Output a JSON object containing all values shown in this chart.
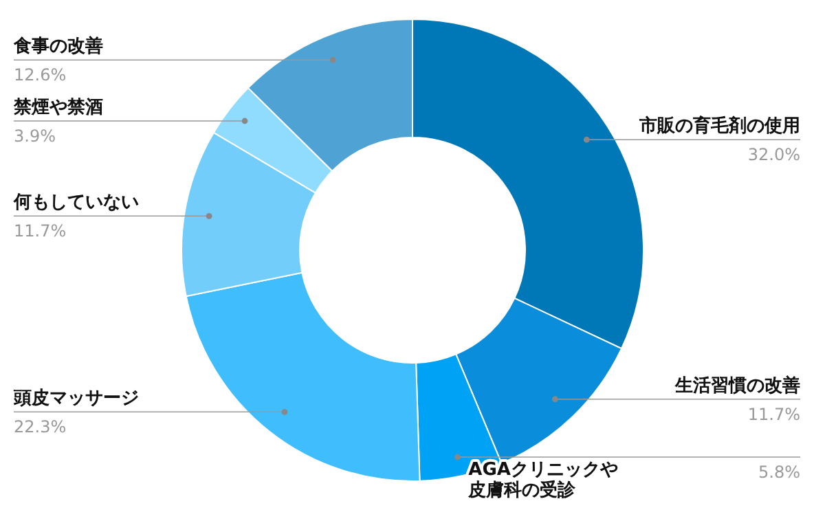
{
  "chart_data": {
    "type": "donut",
    "categories": [
      "市販の育毛剤の使用",
      "生活習慣の改善",
      "AGAクリニックや皮膚科の受診",
      "頭皮マッサージ",
      "何もしていない",
      "禁煙や禁酒",
      "食事の改善"
    ],
    "values": [
      32.0,
      11.7,
      5.8,
      22.3,
      11.7,
      3.9,
      12.6
    ],
    "colors": [
      "#0077b6",
      "#0a8ddb",
      "#00a2f5",
      "#40bdfc",
      "#72cdfa",
      "#90dcff",
      "#4fa3d4"
    ],
    "value_labels": [
      "32.0%",
      "11.7%",
      "5.8%",
      "22.3%",
      "11.7%",
      "3.9%",
      "12.6%"
    ],
    "legend": false
  }
}
